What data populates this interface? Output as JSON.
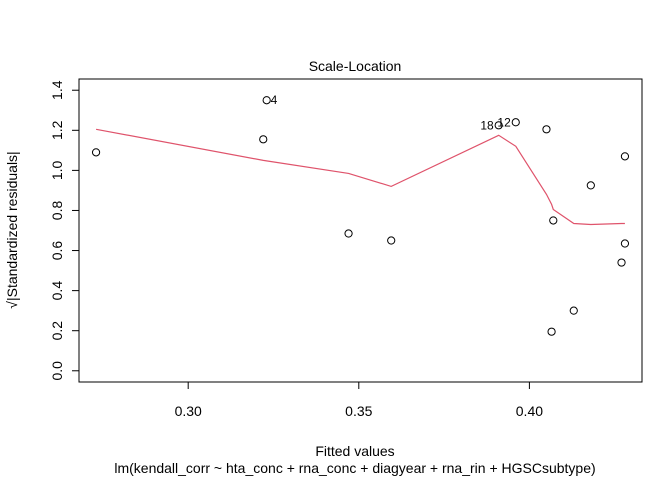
{
  "chart_data": {
    "type": "scatter",
    "title": "Scale-Location",
    "xlabel": "Fitted values",
    "subtitle": "lm(kendall_corr ~ hta_conc + rna_conc + diagyear + rna_rin + HGSCsubtype)",
    "ylabel": "√|Standardized residuals|",
    "xlim": [
      0.268,
      0.433
    ],
    "ylim": [
      -0.056,
      1.456
    ],
    "x_ticks": [
      "0.30",
      "0.35",
      "0.40"
    ],
    "x_tick_values": [
      0.3,
      0.35,
      0.4
    ],
    "y_ticks": [
      "0.0",
      "0.2",
      "0.4",
      "0.6",
      "0.8",
      "1.0",
      "1.2",
      "1.4"
    ],
    "y_tick_values": [
      0.0,
      0.2,
      0.4,
      0.6,
      0.8,
      1.0,
      1.2,
      1.4
    ],
    "points": [
      {
        "x": 0.273,
        "y": 1.09,
        "label": ""
      },
      {
        "x": 0.322,
        "y": 1.155,
        "label": ""
      },
      {
        "x": 0.323,
        "y": 1.35,
        "label": "4"
      },
      {
        "x": 0.347,
        "y": 0.685,
        "label": ""
      },
      {
        "x": 0.3595,
        "y": 0.65,
        "label": ""
      },
      {
        "x": 0.391,
        "y": 1.225,
        "label": "18"
      },
      {
        "x": 0.396,
        "y": 1.24,
        "label": "12"
      },
      {
        "x": 0.405,
        "y": 1.205,
        "label": ""
      },
      {
        "x": 0.4065,
        "y": 0.195,
        "label": ""
      },
      {
        "x": 0.407,
        "y": 0.75,
        "label": ""
      },
      {
        "x": 0.413,
        "y": 0.3,
        "label": ""
      },
      {
        "x": 0.418,
        "y": 0.925,
        "label": ""
      },
      {
        "x": 0.427,
        "y": 0.54,
        "label": ""
      },
      {
        "x": 0.428,
        "y": 1.07,
        "label": ""
      },
      {
        "x": 0.428,
        "y": 0.635,
        "label": ""
      }
    ],
    "smooth_line": {
      "color": "#df536b",
      "x": [
        0.273,
        0.322,
        0.347,
        0.3595,
        0.391,
        0.396,
        0.405,
        0.4065,
        0.407,
        0.413,
        0.418,
        0.427,
        0.428
      ],
      "y": [
        1.205,
        1.05,
        0.985,
        0.92,
        1.175,
        1.12,
        0.88,
        0.83,
        0.805,
        0.735,
        0.73,
        0.735,
        0.735
      ]
    }
  }
}
